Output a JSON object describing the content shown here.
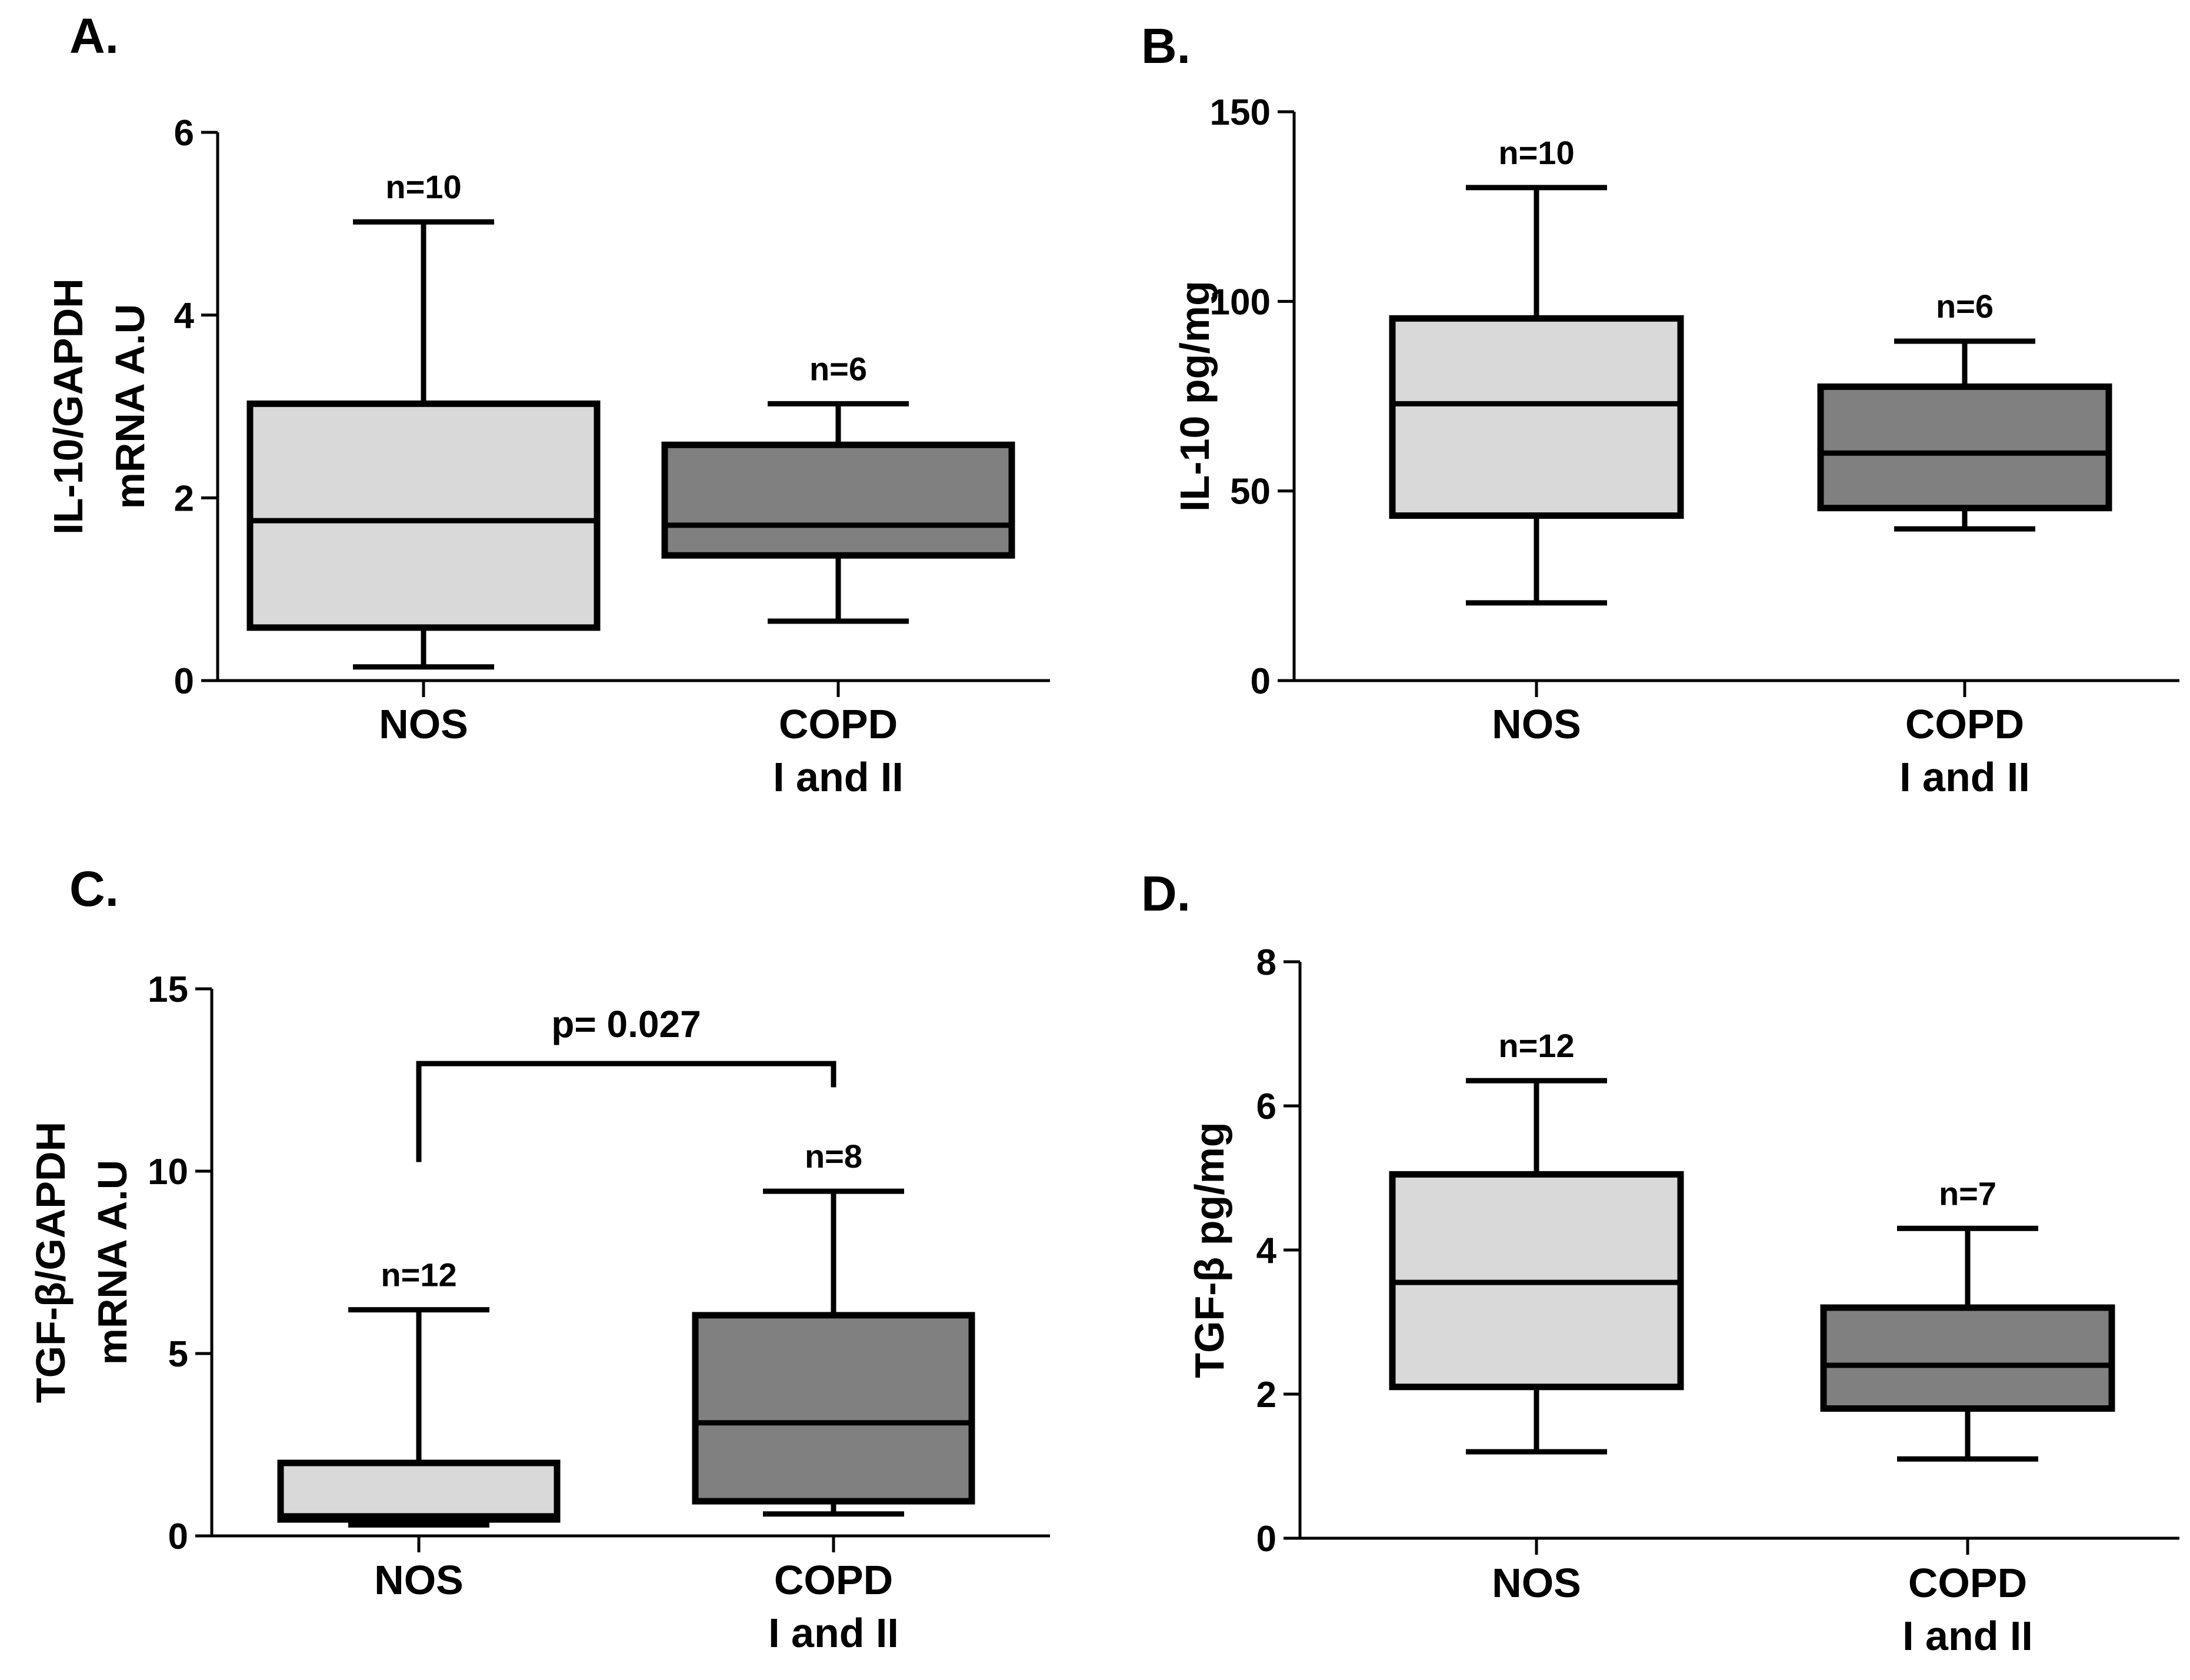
{
  "chart_data": [
    {
      "panel": "A.",
      "type": "boxplot",
      "ylabel_lines": [
        "IL-10/GAPDH",
        "mRNA A.U"
      ],
      "ylim": [
        0,
        6
      ],
      "yticks": [
        0,
        2,
        4,
        6
      ],
      "categories": [
        "NOS",
        "COPD\nI and II"
      ],
      "boxes": [
        {
          "group": "NOS",
          "min": 0.15,
          "q1": 0.58,
          "median": 1.75,
          "q3": 3.03,
          "max": 5.02,
          "n_label": "n=10",
          "fill": "#d9d9d9"
        },
        {
          "group": "COPD I and II",
          "min": 0.65,
          "q1": 1.37,
          "median": 1.7,
          "q3": 2.58,
          "max": 3.03,
          "n_label": "n=6",
          "fill": "#808080"
        }
      ]
    },
    {
      "panel": "B.",
      "type": "boxplot",
      "ylabel_lines": [
        "IL-10 pg/mg"
      ],
      "ylim": [
        0,
        150
      ],
      "yticks": [
        0,
        50,
        100,
        150
      ],
      "categories": [
        "NOS",
        "COPD\nI and II"
      ],
      "boxes": [
        {
          "group": "NOS",
          "min": 20.5,
          "q1": 43.5,
          "median": 73,
          "q3": 95.5,
          "max": 130,
          "n_label": "n=10",
          "fill": "#d9d9d9"
        },
        {
          "group": "COPD I and II",
          "min": 40,
          "q1": 45.5,
          "median": 60,
          "q3": 77.5,
          "max": 89.5,
          "n_label": "n=6",
          "fill": "#808080"
        }
      ]
    },
    {
      "panel": "C.",
      "type": "boxplot",
      "ylabel_lines": [
        "TGF-β/GAPDH",
        "mRNA A.U"
      ],
      "ylim": [
        0,
        15
      ],
      "yticks": [
        0,
        5,
        10,
        15
      ],
      "categories": [
        "NOS",
        "COPD\nI and II"
      ],
      "boxes": [
        {
          "group": "NOS",
          "min": 0.3,
          "q1": 0.45,
          "median": 0.55,
          "q3": 2.0,
          "max": 6.2,
          "n_label": "n=12",
          "fill": "#d9d9d9"
        },
        {
          "group": "COPD I and II",
          "min": 0.6,
          "q1": 0.95,
          "median": 3.1,
          "q3": 6.05,
          "max": 9.45,
          "n_label": "n=8",
          "fill": "#808080"
        }
      ],
      "significance": {
        "label": "p= 0.027",
        "level": 12.95,
        "left_drop": 10.25,
        "right_drop": 12.3
      }
    },
    {
      "panel": "D.",
      "type": "boxplot",
      "ylabel_lines": [
        "TGF-β pg/mg"
      ],
      "ylim": [
        0,
        8
      ],
      "yticks": [
        0,
        2,
        4,
        6,
        8
      ],
      "categories": [
        "NOS",
        "COPD\nI and II"
      ],
      "boxes": [
        {
          "group": "NOS",
          "min": 1.2,
          "q1": 2.1,
          "median": 3.55,
          "q3": 5.05,
          "max": 6.35,
          "n_label": "n=12",
          "fill": "#d9d9d9"
        },
        {
          "group": "COPD I and II",
          "min": 1.1,
          "q1": 1.8,
          "median": 2.4,
          "q3": 3.2,
          "max": 4.3,
          "n_label": "n=7",
          "fill": "#808080"
        }
      ]
    }
  ]
}
